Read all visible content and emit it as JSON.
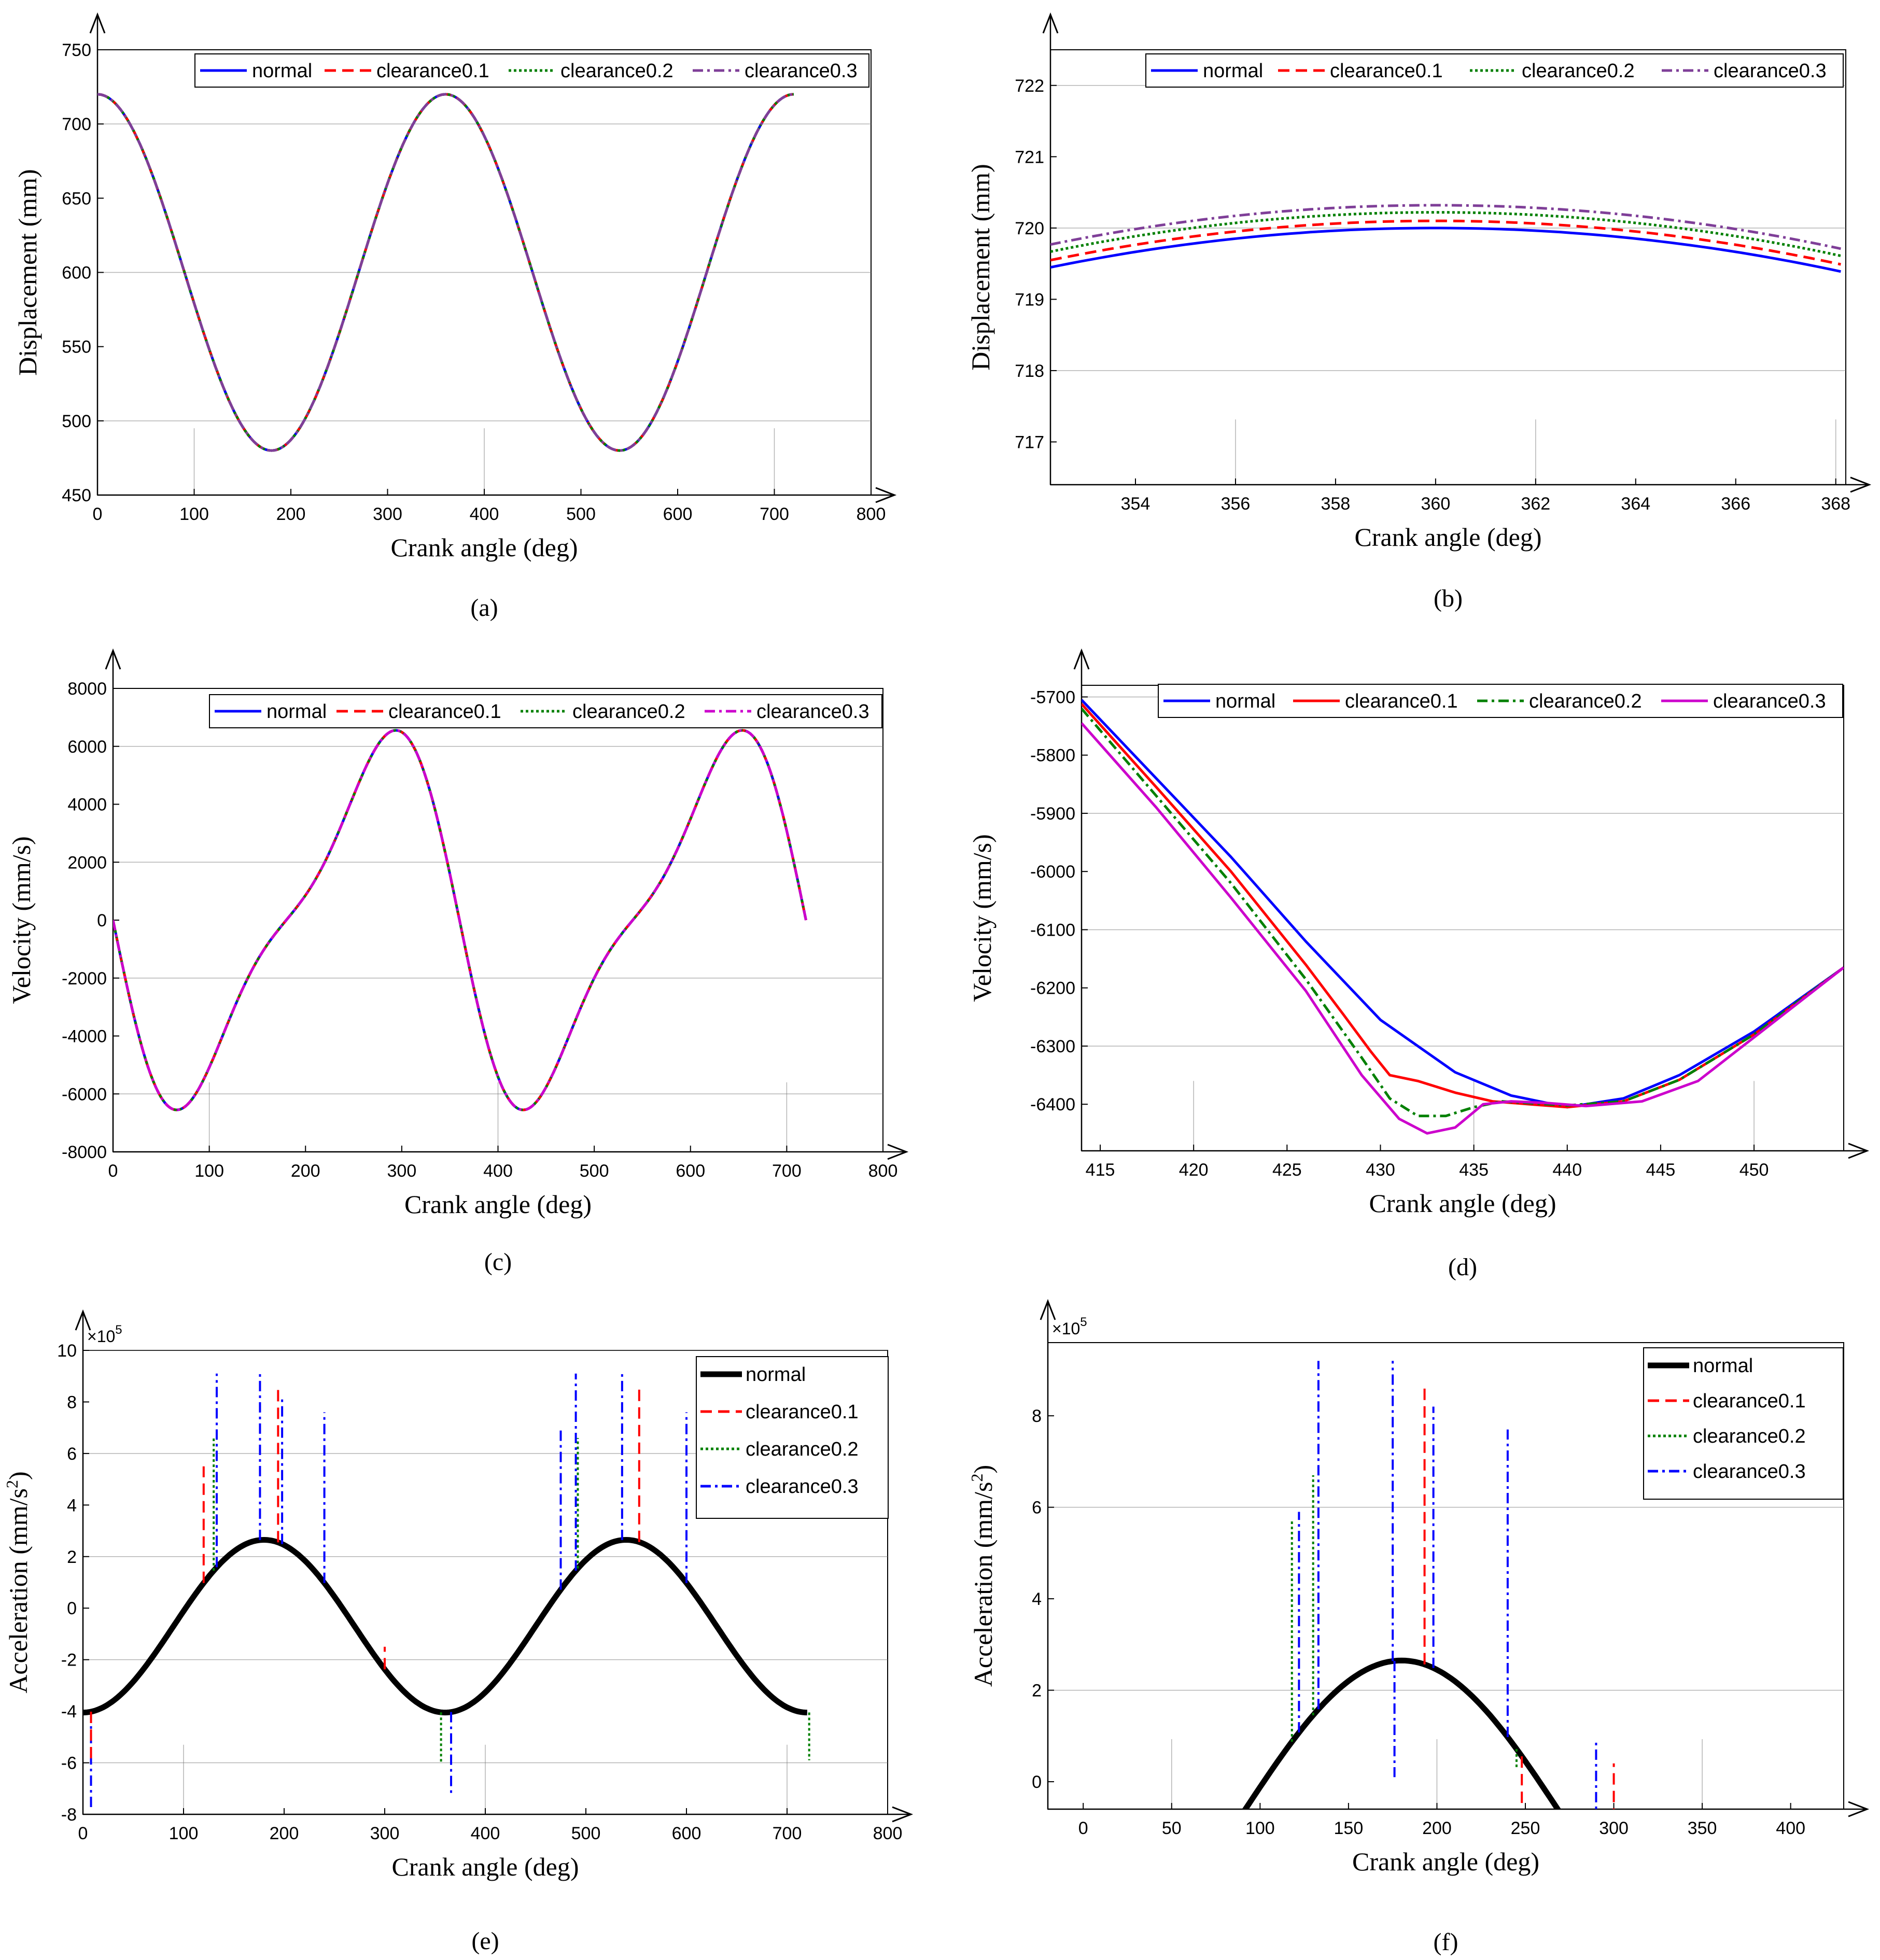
{
  "colors": {
    "normal": "#0000ff",
    "clearance0.1": "#ff0000",
    "clearance0.2": "#008000",
    "clearance0.3": "#7f3f98",
    "magenta": "#cc00cc",
    "black": "#000000"
  },
  "chart_data": [
    {
      "id": "a",
      "type": "line",
      "caption": "(a)",
      "xlabel": "Crank angle (deg)",
      "ylabel": "Displacement (mm)",
      "xlim": [
        0,
        800
      ],
      "ylim": [
        450,
        750
      ],
      "xticks": [
        "0",
        "100",
        "200",
        "300",
        "400",
        "500",
        "600",
        "700",
        "800"
      ],
      "yticks": [
        "450",
        "500",
        "550",
        "600",
        "650",
        "700",
        "750"
      ],
      "legend_position": "top",
      "series": [
        {
          "name": "normal",
          "style": "solid",
          "color": "#0000ff"
        },
        {
          "name": "clearance0.1",
          "style": "dashed",
          "color": "#ff0000"
        },
        {
          "name": "clearance0.2",
          "style": "dotted",
          "color": "#008000"
        },
        {
          "name": "clearance0.3",
          "style": "dashdot",
          "color": "#7f3f98"
        }
      ],
      "curve": {
        "x_range": [
          0,
          720
        ],
        "offset": 600,
        "amplitude": 120,
        "period_deg": 360,
        "min_at_deg": [
          180,
          540
        ],
        "max_at_deg": [
          0,
          360,
          720
        ]
      }
    },
    {
      "id": "b",
      "type": "line",
      "caption": "(b)",
      "xlabel": "Crank angle (deg)",
      "ylabel": "Displacement (mm)",
      "xlim": [
        352.3,
        368.2
      ],
      "ylim": [
        716.4,
        722.5
      ],
      "xticks": [
        "354",
        "356",
        "358",
        "360",
        "362",
        "364",
        "366",
        "368"
      ],
      "yticks": [
        "717",
        "718",
        "719",
        "720",
        "721",
        "722"
      ],
      "legend_position": "top",
      "series": [
        {
          "name": "normal",
          "style": "solid",
          "color": "#0000ff",
          "peak": 720.0
        },
        {
          "name": "clearance0.1",
          "style": "dashed",
          "color": "#ff0000",
          "peak": 720.1
        },
        {
          "name": "clearance0.2",
          "style": "dotted",
          "color": "#008000",
          "peak": 720.22
        },
        {
          "name": "clearance0.3",
          "style": "dashdot",
          "color": "#7f3f98",
          "peak": 720.32
        }
      ]
    },
    {
      "id": "c",
      "type": "line",
      "caption": "(c)",
      "xlabel": "Crank angle (deg)",
      "ylabel": "Velocity (mm/s)",
      "xlim": [
        0,
        800
      ],
      "ylim": [
        -8000,
        8000
      ],
      "xticks": [
        "0",
        "100",
        "200",
        "300",
        "400",
        "500",
        "600",
        "700",
        "800"
      ],
      "yticks": [
        "-8000",
        "-6000",
        "-4000",
        "-2000",
        "0",
        "2000",
        "4000",
        "6000",
        "8000"
      ],
      "legend_position": "top-right",
      "series": [
        {
          "name": "normal",
          "style": "solid",
          "color": "#0000ff"
        },
        {
          "name": "clearance0.1",
          "style": "dashed",
          "color": "#ff0000"
        },
        {
          "name": "clearance0.2",
          "style": "dotted",
          "color": "#008000"
        },
        {
          "name": "clearance0.3",
          "style": "dashdot",
          "color": "#cc00cc"
        }
      ],
      "curve": {
        "x_range": [
          0,
          720
        ],
        "min": -6400,
        "max": 6400,
        "min_at_deg": [
          78,
          438
        ],
        "max_at_deg": [
          282,
          642
        ]
      }
    },
    {
      "id": "d",
      "type": "line",
      "caption": "(d)",
      "xlabel": "Crank angle (deg)",
      "ylabel": "Velocity (mm/s)",
      "xlim": [
        414,
        454.8
      ],
      "ylim": [
        -6480,
        -5680
      ],
      "xticks": [
        "415",
        "420",
        "425",
        "430",
        "435",
        "440",
        "445",
        "450"
      ],
      "yticks": [
        "-6400",
        "-6300",
        "-6200",
        "-6100",
        "-6000",
        "-5900",
        "-5800",
        "-5700"
      ],
      "legend_position": "top",
      "series": [
        {
          "name": "normal",
          "style": "solid",
          "color": "#0000ff",
          "x": [
            414,
            418,
            422,
            426,
            430,
            434,
            437,
            440,
            443,
            446,
            450,
            454.8
          ],
          "y": [
            -5705,
            -5840,
            -5975,
            -6120,
            -6255,
            -6345,
            -6385,
            -6405,
            -6390,
            -6350,
            -6275,
            -6165
          ]
        },
        {
          "name": "clearance0.1",
          "style": "solid",
          "color": "#ff0000",
          "x": [
            414,
            418,
            422,
            426,
            428,
            429.5,
            430.5,
            432,
            434,
            436,
            438,
            440,
            443,
            446,
            450,
            454.8
          ],
          "y": [
            -5712,
            -5855,
            -6000,
            -6160,
            -6245,
            -6310,
            -6350,
            -6360,
            -6380,
            -6395,
            -6400,
            -6405,
            -6395,
            -6358,
            -6280,
            -6165
          ]
        },
        {
          "name": "clearance0.2",
          "style": "dashdot",
          "color": "#008000",
          "x": [
            414,
            418,
            422,
            426,
            429,
            430.5,
            432,
            433.5,
            435,
            436.5,
            438,
            440,
            443,
            446,
            450,
            454.8
          ],
          "y": [
            -5720,
            -5870,
            -6020,
            -6185,
            -6320,
            -6390,
            -6420,
            -6420,
            -6405,
            -6395,
            -6398,
            -6402,
            -6395,
            -6358,
            -6280,
            -6165
          ]
        },
        {
          "name": "clearance0.3",
          "style": "solid",
          "color": "#cc00cc",
          "x": [
            414,
            418,
            422,
            426,
            429,
            431,
            432.5,
            434,
            435.5,
            437,
            439,
            441,
            444,
            447,
            450,
            454.8
          ],
          "y": [
            -5745,
            -5890,
            -6045,
            -6205,
            -6350,
            -6425,
            -6450,
            -6440,
            -6400,
            -6395,
            -6398,
            -6403,
            -6395,
            -6360,
            -6285,
            -6165
          ]
        }
      ]
    },
    {
      "id": "e",
      "type": "line",
      "caption": "(e)",
      "xlabel": "Crank angle (deg)",
      "ylabel_main": "Acceleration (mm/s",
      "ylabel_sup": "2",
      "ylabel_end": ")",
      "multiplier": "×10",
      "multiplier_exp": "5",
      "xlim": [
        0,
        800
      ],
      "ylim": [
        -8,
        10
      ],
      "xticks": [
        "0",
        "100",
        "200",
        "300",
        "400",
        "500",
        "600",
        "700",
        "800"
      ],
      "yticks": [
        "-8",
        "-6",
        "-4",
        "-2",
        "0",
        "2",
        "4",
        "6",
        "8",
        "10"
      ],
      "legend_position": "top-right",
      "series": [
        {
          "name": "normal",
          "style": "solid-thick",
          "color": "#000000"
        },
        {
          "name": "clearance0.1",
          "style": "dashed",
          "color": "#ff0000"
        },
        {
          "name": "clearance0.2",
          "style": "dotted",
          "color": "#008000"
        },
        {
          "name": "clearance0.3",
          "style": "dashdot",
          "color": "#0000ff"
        }
      ],
      "curve": {
        "x_range": [
          0,
          720
        ],
        "offset": -0.7,
        "amplitude": 3.35,
        "period_deg": 360,
        "phase_deg": 180
      },
      "spikes": [
        {
          "x": 8,
          "series": "clearance0.3",
          "to": -7.8
        },
        {
          "x": 8,
          "series": "clearance0.1",
          "to": -6.0
        },
        {
          "x": 120,
          "series": "clearance0.1",
          "to": 5.5
        },
        {
          "x": 130,
          "series": "clearance0.2",
          "to": 6.6
        },
        {
          "x": 133,
          "series": "clearance0.3",
          "to": 9.1
        },
        {
          "x": 176,
          "series": "clearance0.3",
          "to": 9.1
        },
        {
          "x": 194,
          "series": "clearance0.1",
          "to": 8.6
        },
        {
          "x": 198,
          "series": "clearance0.3",
          "to": 8.2
        },
        {
          "x": 240,
          "series": "clearance0.3",
          "to": 7.6
        },
        {
          "x": 300,
          "series": "clearance0.1",
          "to": -1.5
        },
        {
          "x": 356,
          "series": "clearance0.2",
          "to": -6.0
        },
        {
          "x": 366,
          "series": "clearance0.3",
          "to": -7.3
        },
        {
          "x": 475,
          "series": "clearance0.3",
          "to": 7.0
        },
        {
          "x": 490,
          "series": "clearance0.3",
          "to": 9.1
        },
        {
          "x": 492,
          "series": "clearance0.2",
          "to": 6.6
        },
        {
          "x": 536,
          "series": "clearance0.3",
          "to": 9.1
        },
        {
          "x": 553,
          "series": "clearance0.1",
          "to": 8.6
        },
        {
          "x": 600,
          "series": "clearance0.3",
          "to": 7.6
        },
        {
          "x": 722,
          "series": "clearance0.2",
          "to": -5.9
        }
      ]
    },
    {
      "id": "f",
      "type": "line",
      "caption": "(f)",
      "xlabel": "Crank angle (deg)",
      "ylabel_main": "Acceleration (mm/s",
      "ylabel_sup": "2",
      "ylabel_end": ")",
      "multiplier": "×10",
      "multiplier_exp": "5",
      "xlim": [
        -20,
        430
      ],
      "ylim": [
        -0.6,
        9.6
      ],
      "xticks": [
        "0",
        "50",
        "100",
        "150",
        "200",
        "250",
        "300",
        "350",
        "400"
      ],
      "yticks": [
        "0",
        "2",
        "4",
        "6",
        "8"
      ],
      "legend_position": "top-right",
      "series": [
        {
          "name": "normal",
          "style": "solid-thick",
          "color": "#000000"
        },
        {
          "name": "clearance0.1",
          "style": "dashed",
          "color": "#ff0000"
        },
        {
          "name": "clearance0.2",
          "style": "dotted",
          "color": "#008000"
        },
        {
          "name": "clearance0.3",
          "style": "dashdot",
          "color": "#0000ff"
        }
      ],
      "curve": {
        "x_range": [
          70,
          290
        ],
        "offset": -0.7,
        "amplitude": 3.35,
        "period_deg": 360,
        "phase_deg": 180
      },
      "spikes": [
        {
          "x": 118,
          "series": "clearance0.2",
          "to": 5.7
        },
        {
          "x": 122,
          "series": "clearance0.3",
          "to": 5.9
        },
        {
          "x": 130,
          "series": "clearance0.2",
          "to": 6.7
        },
        {
          "x": 133,
          "series": "clearance0.3",
          "to": 9.2
        },
        {
          "x": 175,
          "series": "clearance0.3",
          "to": 9.2
        },
        {
          "x": 176,
          "series": "clearance0.3",
          "to": 0.1
        },
        {
          "x": 193,
          "series": "clearance0.1",
          "to": 8.6
        },
        {
          "x": 198,
          "series": "clearance0.3",
          "to": 8.2
        },
        {
          "x": 240,
          "series": "clearance0.3",
          "to": 7.7
        },
        {
          "x": 245,
          "series": "clearance0.2",
          "to": 0.3
        },
        {
          "x": 248,
          "series": "clearance0.1",
          "to": -0.5
        },
        {
          "x": 290,
          "series": "clearance0.3",
          "to": 0.9
        },
        {
          "x": 300,
          "series": "clearance0.1",
          "to": 0.4
        }
      ]
    }
  ]
}
